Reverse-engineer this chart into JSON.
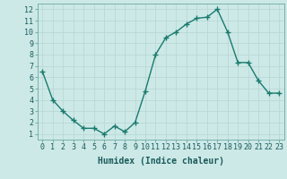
{
  "x": [
    0,
    1,
    2,
    3,
    4,
    5,
    6,
    7,
    8,
    9,
    10,
    11,
    12,
    13,
    14,
    15,
    16,
    17,
    18,
    19,
    20,
    21,
    22,
    23
  ],
  "y": [
    6.5,
    4.0,
    3.0,
    2.2,
    1.5,
    1.5,
    1.0,
    1.7,
    1.2,
    2.0,
    4.8,
    8.0,
    9.5,
    10.0,
    10.7,
    11.2,
    11.3,
    12.0,
    10.0,
    7.3,
    7.3,
    5.7,
    4.6,
    4.6
  ],
  "line_color": "#1a7a6e",
  "marker": "+",
  "marker_size": 4,
  "bg_color": "#cce9e7",
  "grid_color": "#b8d8d6",
  "xlabel": "Humidex (Indice chaleur)",
  "ylabel_ticks": [
    1,
    2,
    3,
    4,
    5,
    6,
    7,
    8,
    9,
    10,
    11,
    12
  ],
  "xlabel_ticks": [
    0,
    1,
    2,
    3,
    4,
    5,
    6,
    7,
    8,
    9,
    10,
    11,
    12,
    13,
    14,
    15,
    16,
    17,
    18,
    19,
    20,
    21,
    22,
    23
  ],
  "xlim": [
    -0.5,
    23.5
  ],
  "ylim": [
    0.5,
    12.5
  ],
  "xlabel_fontsize": 7,
  "tick_fontsize": 6,
  "marker_linewidth": 1.0,
  "line_width": 1.0
}
